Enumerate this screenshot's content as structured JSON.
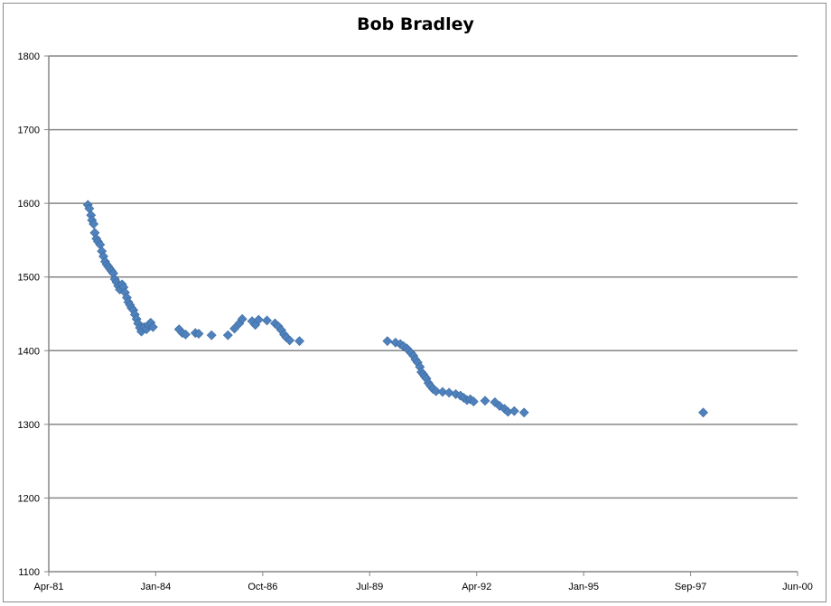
{
  "chart_data": {
    "type": "scatter",
    "title": "Bob Bradley",
    "xlabel": "",
    "ylabel": "",
    "ylim": [
      1100,
      1800
    ],
    "yticks": [
      1100,
      1200,
      1300,
      1400,
      1500,
      1600,
      1700,
      1800
    ],
    "xlim": [
      "1981-04-01",
      "2000-06-01"
    ],
    "xticks": [
      "Apr-81",
      "Jan-84",
      "Oct-86",
      "Jul-89",
      "Apr-92",
      "Jan-95",
      "Sep-97",
      "Jun-00"
    ],
    "grid": true,
    "legend": "none",
    "marker": "diamond",
    "color": "#4f81bd",
    "points": [
      {
        "x": "1982-04-01",
        "y": 1598
      },
      {
        "x": "1982-04-15",
        "y": 1593
      },
      {
        "x": "1982-05-01",
        "y": 1584
      },
      {
        "x": "1982-05-10",
        "y": 1577
      },
      {
        "x": "1982-05-25",
        "y": 1572
      },
      {
        "x": "1982-06-05",
        "y": 1560
      },
      {
        "x": "1982-06-20",
        "y": 1552
      },
      {
        "x": "1982-07-05",
        "y": 1548
      },
      {
        "x": "1982-07-25",
        "y": 1544
      },
      {
        "x": "1982-08-10",
        "y": 1535
      },
      {
        "x": "1982-08-25",
        "y": 1528
      },
      {
        "x": "1982-09-10",
        "y": 1521
      },
      {
        "x": "1982-09-25",
        "y": 1517
      },
      {
        "x": "1982-10-10",
        "y": 1514
      },
      {
        "x": "1982-10-25",
        "y": 1511
      },
      {
        "x": "1982-11-10",
        "y": 1508
      },
      {
        "x": "1982-11-25",
        "y": 1505
      },
      {
        "x": "1982-12-10",
        "y": 1497
      },
      {
        "x": "1982-12-25",
        "y": 1493
      },
      {
        "x": "1983-01-10",
        "y": 1488
      },
      {
        "x": "1983-01-25",
        "y": 1483
      },
      {
        "x": "1983-02-15",
        "y": 1490
      },
      {
        "x": "1983-03-01",
        "y": 1486
      },
      {
        "x": "1983-03-15",
        "y": 1479
      },
      {
        "x": "1983-04-01",
        "y": 1472
      },
      {
        "x": "1983-04-15",
        "y": 1466
      },
      {
        "x": "1983-05-01",
        "y": 1462
      },
      {
        "x": "1983-05-15",
        "y": 1458
      },
      {
        "x": "1983-06-01",
        "y": 1455
      },
      {
        "x": "1983-06-15",
        "y": 1449
      },
      {
        "x": "1983-07-01",
        "y": 1443
      },
      {
        "x": "1983-07-15",
        "y": 1437
      },
      {
        "x": "1983-08-01",
        "y": 1431
      },
      {
        "x": "1983-08-15",
        "y": 1426
      },
      {
        "x": "1983-09-10",
        "y": 1432
      },
      {
        "x": "1983-10-01",
        "y": 1429
      },
      {
        "x": "1983-10-20",
        "y": 1435
      },
      {
        "x": "1983-11-10",
        "y": 1438
      },
      {
        "x": "1983-12-01",
        "y": 1432
      },
      {
        "x": "1984-08-01",
        "y": 1429
      },
      {
        "x": "1984-09-01",
        "y": 1424
      },
      {
        "x": "1984-10-01",
        "y": 1422
      },
      {
        "x": "1985-01-01",
        "y": 1424
      },
      {
        "x": "1985-02-01",
        "y": 1423
      },
      {
        "x": "1985-06-01",
        "y": 1421
      },
      {
        "x": "1985-11-01",
        "y": 1421
      },
      {
        "x": "1986-01-01",
        "y": 1430
      },
      {
        "x": "1986-02-15",
        "y": 1437
      },
      {
        "x": "1986-03-15",
        "y": 1443
      },
      {
        "x": "1986-06-15",
        "y": 1440
      },
      {
        "x": "1986-07-15",
        "y": 1435
      },
      {
        "x": "1986-08-15",
        "y": 1442
      },
      {
        "x": "1986-11-01",
        "y": 1441
      },
      {
        "x": "1987-01-15",
        "y": 1437
      },
      {
        "x": "1987-02-15",
        "y": 1433
      },
      {
        "x": "1987-03-15",
        "y": 1428
      },
      {
        "x": "1987-04-10",
        "y": 1422
      },
      {
        "x": "1987-05-01",
        "y": 1418
      },
      {
        "x": "1987-06-01",
        "y": 1414
      },
      {
        "x": "1987-09-01",
        "y": 1413
      },
      {
        "x": "1989-12-01",
        "y": 1413
      },
      {
        "x": "1990-02-15",
        "y": 1411
      },
      {
        "x": "1990-04-01",
        "y": 1409
      },
      {
        "x": "1990-05-01",
        "y": 1406
      },
      {
        "x": "1990-06-01",
        "y": 1403
      },
      {
        "x": "1990-06-20",
        "y": 1400
      },
      {
        "x": "1990-07-10",
        "y": 1397
      },
      {
        "x": "1990-08-01",
        "y": 1393
      },
      {
        "x": "1990-08-20",
        "y": 1388
      },
      {
        "x": "1990-09-10",
        "y": 1384
      },
      {
        "x": "1990-10-01",
        "y": 1378
      },
      {
        "x": "1990-10-15",
        "y": 1371
      },
      {
        "x": "1990-11-01",
        "y": 1368
      },
      {
        "x": "1990-11-15",
        "y": 1365
      },
      {
        "x": "1990-12-01",
        "y": 1362
      },
      {
        "x": "1990-12-20",
        "y": 1356
      },
      {
        "x": "1991-01-10",
        "y": 1352
      },
      {
        "x": "1991-02-01",
        "y": 1348
      },
      {
        "x": "1991-03-01",
        "y": 1345
      },
      {
        "x": "1991-05-01",
        "y": 1344
      },
      {
        "x": "1991-07-01",
        "y": 1343
      },
      {
        "x": "1991-09-01",
        "y": 1341
      },
      {
        "x": "1991-10-15",
        "y": 1339
      },
      {
        "x": "1991-11-15",
        "y": 1336
      },
      {
        "x": "1991-12-15",
        "y": 1333
      },
      {
        "x": "1992-01-15",
        "y": 1334
      },
      {
        "x": "1992-02-15",
        "y": 1331
      },
      {
        "x": "1992-06-01",
        "y": 1332
      },
      {
        "x": "1992-09-01",
        "y": 1330
      },
      {
        "x": "1992-10-15",
        "y": 1325
      },
      {
        "x": "1992-12-01",
        "y": 1321
      },
      {
        "x": "1993-01-01",
        "y": 1317
      },
      {
        "x": "1993-03-01",
        "y": 1318
      },
      {
        "x": "1993-06-01",
        "y": 1316
      },
      {
        "x": "1998-01-01",
        "y": 1316
      }
    ]
  }
}
